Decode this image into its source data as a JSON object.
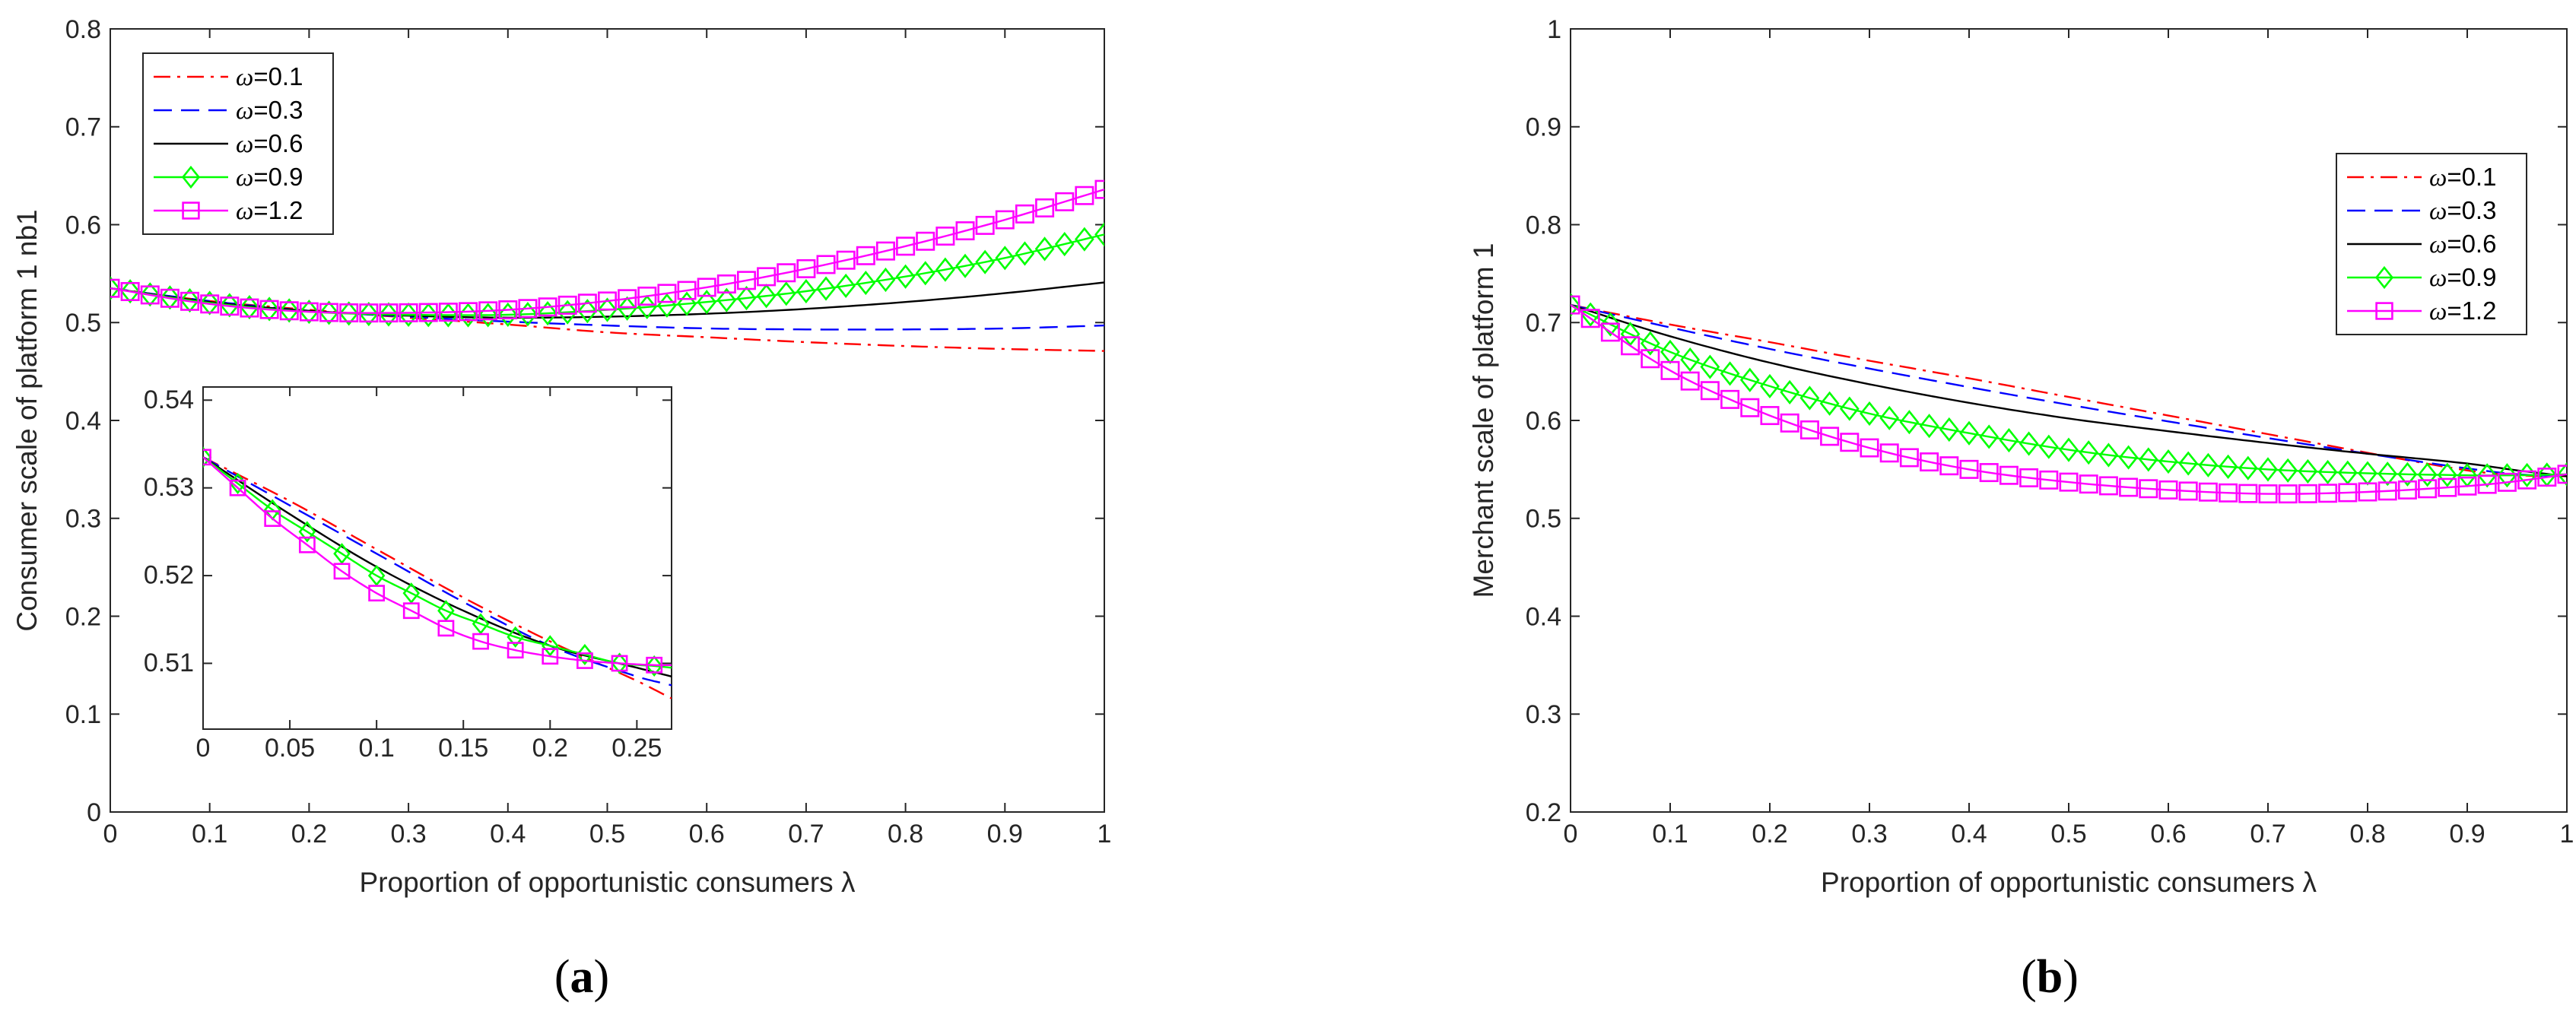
{
  "chart_data": [
    {
      "id": "a",
      "type": "line",
      "panel_label": {
        "open": "(",
        "letter": "a",
        "close": ")"
      },
      "xlabel": "Proportion of opportunistic consumers λ",
      "ylabel": "Consumer scale of platform 1 nb1",
      "xlim": [
        0,
        1
      ],
      "ylim": [
        0,
        0.8
      ],
      "xticks": [
        "0",
        "0.1",
        "0.2",
        "0.3",
        "0.4",
        "0.5",
        "0.6",
        "0.7",
        "0.8",
        "0.9",
        "1"
      ],
      "yticks": [
        "0",
        "0.1",
        "0.2",
        "0.3",
        "0.4",
        "0.5",
        "0.6",
        "0.7",
        "0.8"
      ],
      "legend_position": "top-left",
      "series": [
        {
          "name": "ω=0.1",
          "symbol": "ω",
          "label": "=0.1",
          "color": "#ff0000",
          "dash": "dashdot",
          "marker": "none",
          "x": [
            0,
            0.1,
            0.2,
            0.3,
            0.4,
            0.5,
            0.6,
            0.7,
            0.8,
            0.9,
            1.0
          ],
          "y": [
            0.535,
            0.522,
            0.513,
            0.505,
            0.498,
            0.49,
            0.485,
            0.48,
            0.476,
            0.473,
            0.471
          ]
        },
        {
          "name": "ω=0.3",
          "symbol": "ω",
          "label": "=0.3",
          "color": "#0000ff",
          "dash": "dashed",
          "marker": "none",
          "x": [
            0,
            0.1,
            0.2,
            0.3,
            0.4,
            0.5,
            0.6,
            0.7,
            0.8,
            0.9,
            1.0
          ],
          "y": [
            0.535,
            0.522,
            0.512,
            0.506,
            0.501,
            0.497,
            0.494,
            0.493,
            0.493,
            0.494,
            0.497
          ]
        },
        {
          "name": "ω=0.6",
          "symbol": "ω",
          "label": "=0.6",
          "color": "#000000",
          "dash": "solid",
          "marker": "none",
          "x": [
            0,
            0.1,
            0.2,
            0.3,
            0.4,
            0.5,
            0.6,
            0.7,
            0.8,
            0.9,
            1.0
          ],
          "y": [
            0.535,
            0.521,
            0.512,
            0.507,
            0.505,
            0.506,
            0.509,
            0.514,
            0.521,
            0.53,
            0.541
          ]
        },
        {
          "name": "ω=0.9",
          "symbol": "ω",
          "label": "=0.9",
          "color": "#00ff00",
          "dash": "solid",
          "marker": "diamond",
          "x": [
            0,
            0.1,
            0.2,
            0.3,
            0.4,
            0.5,
            0.6,
            0.7,
            0.8,
            0.9,
            1.0
          ],
          "y": [
            0.535,
            0.52,
            0.511,
            0.508,
            0.508,
            0.513,
            0.521,
            0.532,
            0.547,
            0.566,
            0.59
          ]
        },
        {
          "name": "ω=1.2",
          "symbol": "ω",
          "label": "=1.2",
          "color": "#ff00ff",
          "dash": "solid",
          "marker": "square",
          "x": [
            0,
            0.1,
            0.2,
            0.3,
            0.4,
            0.5,
            0.6,
            0.7,
            0.8,
            0.9,
            1.0
          ],
          "y": [
            0.535,
            0.519,
            0.511,
            0.51,
            0.513,
            0.522,
            0.536,
            0.555,
            0.578,
            0.605,
            0.636
          ]
        }
      ],
      "inset": {
        "xlim": [
          0,
          0.27
        ],
        "ylim": [
          0.5025,
          0.5415
        ],
        "xticks": [
          "0",
          "0.05",
          "0.1",
          "0.15",
          "0.2",
          "0.25"
        ],
        "yticks": [
          "0.51",
          "0.52",
          "0.53",
          "0.54"
        ],
        "series": [
          {
            "name": "ω=0.1",
            "x": [
              0,
              0.05,
              0.1,
              0.15,
              0.2,
              0.25,
              0.27
            ],
            "y": [
              0.5335,
              0.5285,
              0.523,
              0.5175,
              0.5125,
              0.508,
              0.506
            ]
          },
          {
            "name": "ω=0.3",
            "x": [
              0,
              0.05,
              0.1,
              0.15,
              0.2,
              0.25,
              0.27
            ],
            "y": [
              0.5335,
              0.528,
              0.5225,
              0.517,
              0.512,
              0.5085,
              0.5075
            ]
          },
          {
            "name": "ω=0.6",
            "x": [
              0,
              0.05,
              0.1,
              0.15,
              0.2,
              0.25,
              0.27
            ],
            "y": [
              0.5335,
              0.527,
              0.521,
              0.516,
              0.512,
              0.5095,
              0.5085
            ]
          },
          {
            "name": "ω=0.9",
            "x": [
              0,
              0.02,
              0.04,
              0.06,
              0.08,
              0.1,
              0.12,
              0.14,
              0.16,
              0.18,
              0.2,
              0.22,
              0.24,
              0.26,
              0.27
            ],
            "y": [
              0.5335,
              0.5305,
              0.5275,
              0.525,
              0.5225,
              0.52,
              0.518,
              0.516,
              0.5145,
              0.513,
              0.512,
              0.511,
              0.51,
              0.5097,
              0.5095
            ]
          },
          {
            "name": "ω=1.2",
            "x": [
              0,
              0.02,
              0.04,
              0.06,
              0.08,
              0.1,
              0.12,
              0.14,
              0.16,
              0.18,
              0.2,
              0.22,
              0.24,
              0.26,
              0.27
            ],
            "y": [
              0.5335,
              0.53,
              0.5265,
              0.5235,
              0.5205,
              0.518,
              0.516,
              0.514,
              0.5125,
              0.5115,
              0.5108,
              0.5103,
              0.51,
              0.5098,
              0.5098
            ]
          }
        ]
      }
    },
    {
      "id": "b",
      "type": "line",
      "panel_label": {
        "open": "(",
        "letter": "b",
        "close": ")"
      },
      "xlabel": "Proportion of opportunistic consumers λ",
      "ylabel": "Merchant scale of platform 1",
      "xlim": [
        0,
        1
      ],
      "ylim": [
        0.2,
        1
      ],
      "xticks": [
        "0",
        "0.1",
        "0.2",
        "0.3",
        "0.4",
        "0.5",
        "0.6",
        "0.7",
        "0.8",
        "0.9",
        "1"
      ],
      "yticks": [
        "0.2",
        "0.3",
        "0.4",
        "0.5",
        "0.6",
        "0.7",
        "0.8",
        "0.9",
        "1"
      ],
      "legend_position": "top-right",
      "series": [
        {
          "name": "ω=0.1",
          "symbol": "ω",
          "label": "=0.1",
          "color": "#ff0000",
          "dash": "dashdot",
          "marker": "none",
          "x": [
            0,
            0.1,
            0.2,
            0.3,
            0.4,
            0.5,
            0.6,
            0.7,
            0.8,
            0.9,
            0.95,
            1.0
          ],
          "y": [
            0.718,
            0.698,
            0.68,
            0.661,
            0.643,
            0.624,
            0.605,
            0.586,
            0.567,
            0.549,
            0.544,
            0.543
          ]
        },
        {
          "name": "ω=0.3",
          "symbol": "ω",
          "label": "=0.3",
          "color": "#0000ff",
          "dash": "dashed",
          "marker": "none",
          "x": [
            0,
            0.1,
            0.2,
            0.3,
            0.4,
            0.5,
            0.6,
            0.7,
            0.8,
            0.9,
            0.95,
            1.0
          ],
          "y": [
            0.718,
            0.695,
            0.673,
            0.653,
            0.634,
            0.616,
            0.599,
            0.582,
            0.566,
            0.551,
            0.545,
            0.543
          ]
        },
        {
          "name": "ω=0.6",
          "symbol": "ω",
          "label": "=0.6",
          "color": "#000000",
          "dash": "solid",
          "marker": "none",
          "x": [
            0,
            0.1,
            0.2,
            0.3,
            0.4,
            0.5,
            0.6,
            0.7,
            0.8,
            0.9,
            0.95,
            1.0
          ],
          "y": [
            0.718,
            0.686,
            0.659,
            0.637,
            0.618,
            0.602,
            0.589,
            0.577,
            0.566,
            0.556,
            0.549,
            0.543
          ]
        },
        {
          "name": "ω=0.9",
          "symbol": "ω",
          "label": "=0.9",
          "color": "#00ff00",
          "dash": "solid",
          "marker": "diamond",
          "x": [
            0,
            0.1,
            0.2,
            0.3,
            0.4,
            0.5,
            0.6,
            0.7,
            0.8,
            0.9,
            0.95,
            1.0
          ],
          "y": [
            0.718,
            0.67,
            0.635,
            0.607,
            0.587,
            0.57,
            0.558,
            0.55,
            0.546,
            0.544,
            0.544,
            0.545
          ]
        },
        {
          "name": "ω=1.2",
          "symbol": "ω",
          "label": "=1.2",
          "color": "#ff00ff",
          "dash": "solid",
          "marker": "square",
          "x": [
            0,
            0.1,
            0.2,
            0.3,
            0.4,
            0.5,
            0.6,
            0.7,
            0.8,
            0.9,
            0.95,
            1.0
          ],
          "y": [
            0.718,
            0.651,
            0.605,
            0.572,
            0.55,
            0.537,
            0.529,
            0.525,
            0.527,
            0.533,
            0.538,
            0.545
          ]
        }
      ]
    }
  ]
}
